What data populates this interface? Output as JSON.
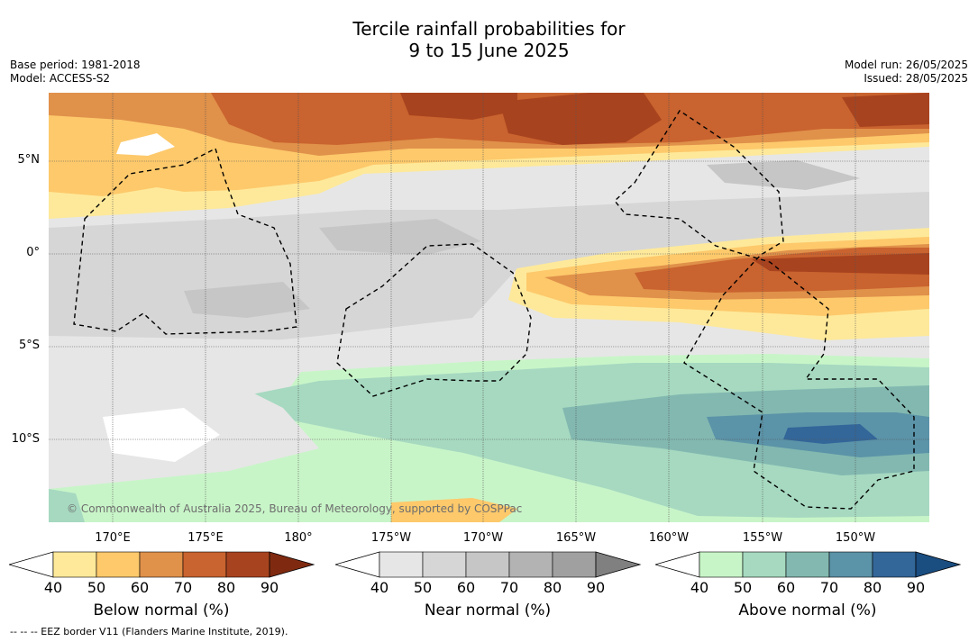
{
  "title": {
    "line1": "Tercile rainfall probabilities for",
    "line2": "9 to 15 June 2025"
  },
  "meta": {
    "base_period": "Base period: 1981-2018",
    "model": "Model: ACCESS-S2",
    "model_run": "Model run: 26/05/2025",
    "issued": "Issued: 28/05/2025"
  },
  "map": {
    "lat_labels": [
      "5°N",
      "0°",
      "5°S",
      "10°S"
    ],
    "lon_labels": [
      "170°E",
      "175°E",
      "180°",
      "175°W",
      "170°W",
      "165°W",
      "160°W",
      "155°W",
      "150°W"
    ],
    "copyright": "© Commonwealth of Australia 2025, Bureau of Meteorology, supported by COSPPac",
    "colors": {
      "below": [
        "#fee99a",
        "#fdc96b",
        "#e0914a",
        "#c9632f",
        "#a8431f",
        "#7f2a10"
      ],
      "near": [
        "#e6e6e6",
        "#d6d6d6",
        "#c6c6c6",
        "#b3b3b3",
        "#a0a0a0",
        "#808080"
      ],
      "above": [
        "#c8f5c8",
        "#a6d9c0",
        "#82b8b0",
        "#5b93a8",
        "#336699",
        "#1a4d80"
      ]
    }
  },
  "colorbars": [
    {
      "label": "Below normal (%)",
      "ticks": [
        "40",
        "50",
        "60",
        "70",
        "80",
        "90"
      ]
    },
    {
      "label": "Near normal (%)",
      "ticks": [
        "40",
        "50",
        "60",
        "70",
        "80",
        "90"
      ]
    },
    {
      "label": "Above normal (%)",
      "ticks": [
        "40",
        "50",
        "60",
        "70",
        "80",
        "90"
      ]
    }
  ],
  "footnote": "--  --  -- EEZ border V11 (Flanders Marine Institute, 2019)."
}
